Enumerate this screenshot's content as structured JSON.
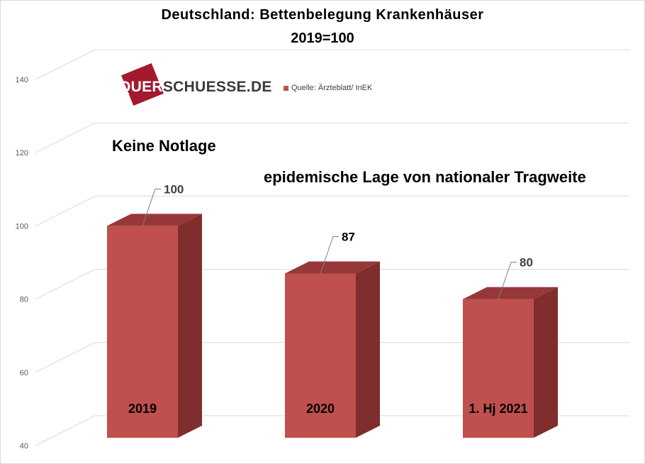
{
  "chart_data": {
    "type": "bar",
    "title": "Deutschland:  Bettenbelegung  Krankenhäuser",
    "subtitle": "2019=100",
    "categories": [
      "2019",
      "2020",
      "1. Hj 2021"
    ],
    "series": [
      {
        "name": "Quelle: Ärzteblatt/ InEK",
        "values": [
          100,
          87,
          80
        ]
      }
    ],
    "data_labels": [
      "100",
      "87",
      "80"
    ],
    "y_ticks": [
      "40",
      "60",
      "80",
      "100",
      "120",
      "140"
    ],
    "ylim": [
      40,
      140
    ],
    "grid": true,
    "legend_position": "top",
    "annotations": [
      "Keine Notlage",
      "epidemische Lage von nationaler Tragweite"
    ]
  },
  "logo": {
    "prefix": "QUER",
    "suffix": "SCHUESSE.DE"
  },
  "colors": {
    "bar_front": "#c0504d",
    "bar_side": "#7f2d2d",
    "bar_top": "#96383a",
    "grid": "#d9d9d9",
    "logo": "#a3192f"
  },
  "credit": "2019=100"
}
